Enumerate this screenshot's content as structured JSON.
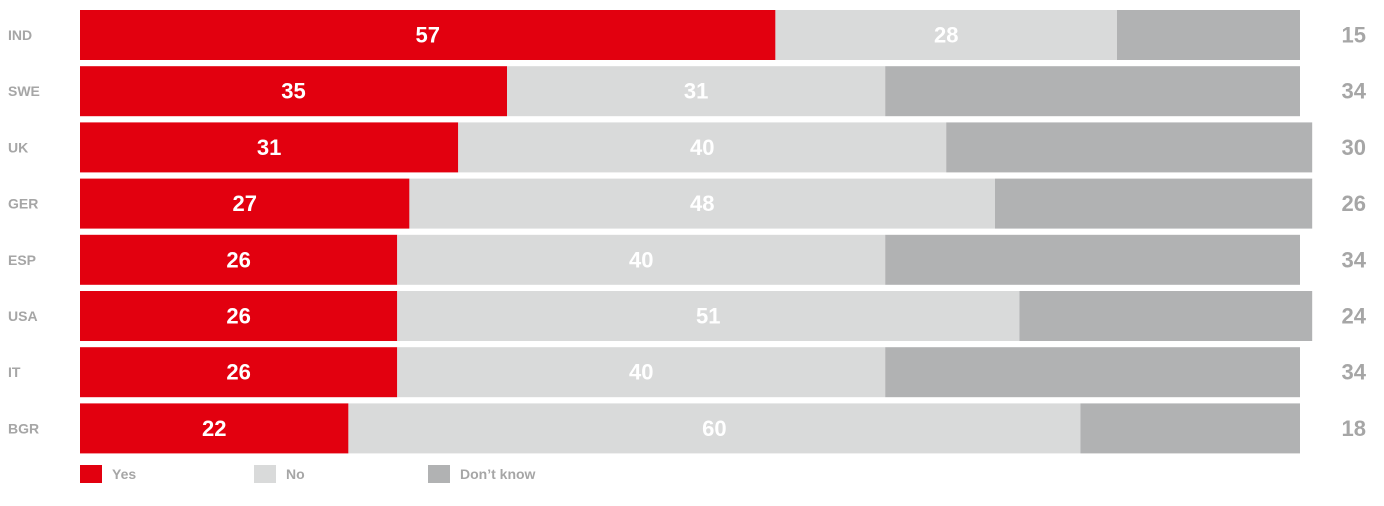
{
  "chart_data": {
    "type": "bar",
    "orientation": "horizontal",
    "stacked": true,
    "categories": [
      "IND",
      "SWE",
      "UK",
      "GER",
      "ESP",
      "USA",
      "IT",
      "BGR"
    ],
    "series": [
      {
        "name": "Yes",
        "color": "#e2000f",
        "values": [
          57,
          35,
          31,
          27,
          26,
          26,
          26,
          22
        ]
      },
      {
        "name": "No",
        "color": "#d9dada",
        "values": [
          28,
          31,
          40,
          48,
          40,
          51,
          40,
          60
        ]
      },
      {
        "name": "Don’t know",
        "color": "#b1b2b3",
        "values": [
          15,
          34,
          30,
          26,
          34,
          24,
          34,
          18
        ]
      }
    ],
    "xlim": [
      0,
      100
    ],
    "grid": false,
    "legend": "bottom-left",
    "title": "",
    "xlabel": "",
    "ylabel": ""
  }
}
